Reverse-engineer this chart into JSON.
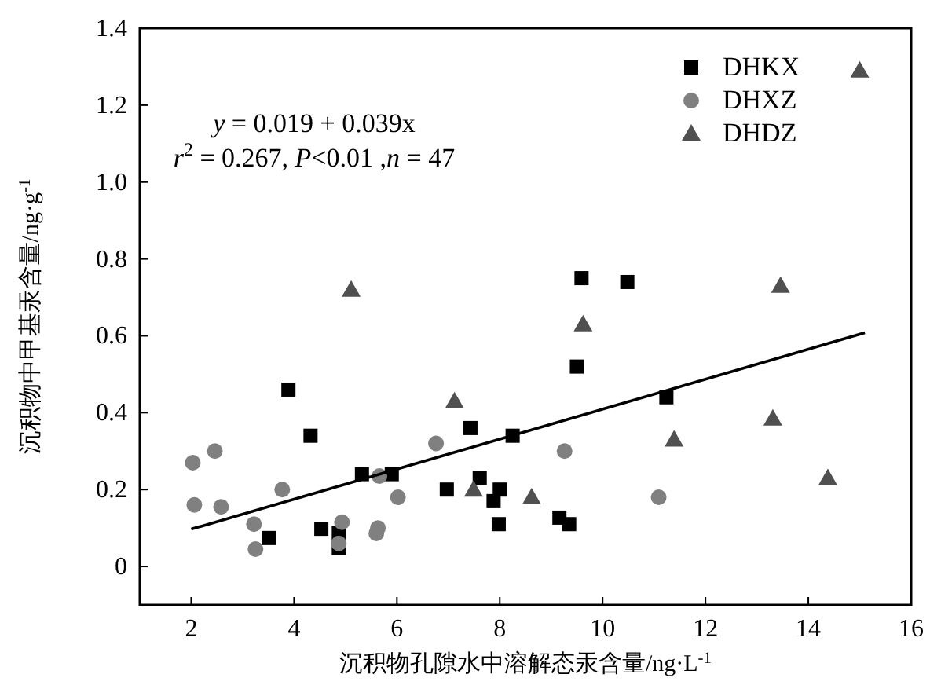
{
  "chart_data": {
    "type": "scatter",
    "xlabel": "沉积物孔隙水中溶解态汞含量/ng·L$^{-1}$",
    "ylabel": "沉积物中甲基汞含量/ng·g$^{-1}$",
    "xlim": [
      1,
      16
    ],
    "xticks": [
      2,
      4,
      6,
      8,
      10,
      12,
      14,
      16
    ],
    "ylim": [
      -0.1,
      1.4
    ],
    "yticks": [
      0,
      0.2,
      0.4,
      0.6,
      0.8,
      {
        "value": 1,
        "label": "1.0"
      },
      1.2,
      1.4
    ],
    "grid": false,
    "legend": "top right",
    "annotations": [
      {
        "text": "*y* = 0.019 + 0.039x"
      },
      {
        "text": "*r*$^{2}$ = 0.267, *P*<0.01 ,*n* = 47"
      }
    ],
    "series": [
      {
        "name": "DHKX",
        "color": "#000000",
        "marker": "square",
        "x": [
          3.89,
          4.32,
          5.32,
          5.9,
          3.52,
          4.53,
          4.87,
          4.87,
          9.59,
          10.48,
          9.5,
          11.24,
          7.43,
          8.25,
          6.97,
          7.61,
          8.0,
          7.88,
          7.98,
          9.16,
          9.35
        ],
        "values": [
          0.46,
          0.34,
          0.24,
          0.24,
          0.074,
          0.098,
          0.086,
          0.049,
          0.75,
          0.74,
          0.52,
          0.44,
          0.36,
          0.34,
          0.2,
          0.23,
          0.2,
          0.17,
          0.11,
          0.127,
          0.11
        ]
      },
      {
        "name": "DHXZ",
        "color": "#808080",
        "marker": "circle",
        "x": [
          2.03,
          2.46,
          2.06,
          2.58,
          3.77,
          3.22,
          3.25,
          4.93,
          4.87,
          5.63,
          5.6,
          5.66,
          6.02,
          6.76,
          9.26,
          11.09
        ],
        "values": [
          0.27,
          0.3,
          0.16,
          0.155,
          0.2,
          0.11,
          0.045,
          0.115,
          0.06,
          0.1,
          0.086,
          0.235,
          0.18,
          0.32,
          0.3,
          0.18
        ]
      },
      {
        "name": "DHDZ",
        "color": "#505050",
        "marker": "triangle",
        "x": [
          5.11,
          9.62,
          7.12,
          11.39,
          7.49,
          8.62,
          13.46,
          13.31,
          14.38,
          15.0
        ],
        "values": [
          0.72,
          0.63,
          0.43,
          0.33,
          0.2,
          0.18,
          0.73,
          0.385,
          0.23,
          1.29
        ]
      },
      {
        "type": "line",
        "color": "#000000",
        "marker": "none",
        "x": [
          2,
          15.1
        ],
        "values": [
          0.097,
          0.608
        ]
      }
    ]
  }
}
